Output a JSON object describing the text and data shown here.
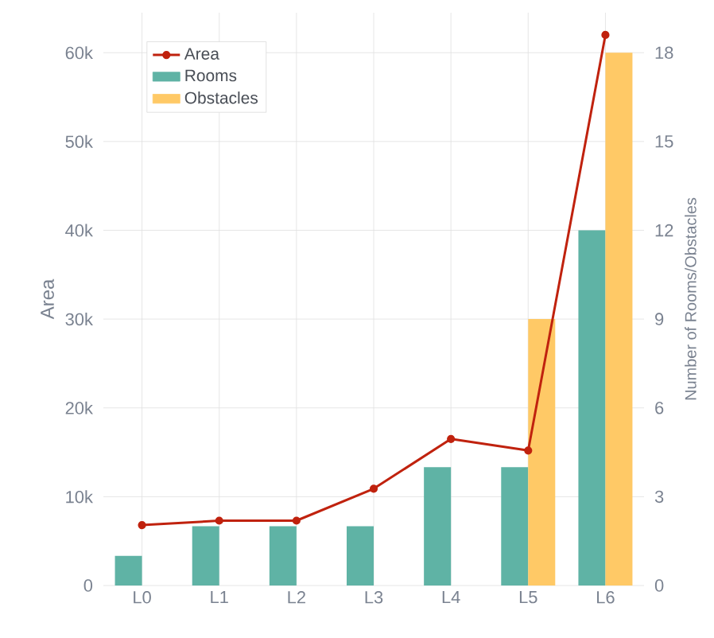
{
  "chart_data": {
    "type": "bar",
    "categories": [
      "L0",
      "L1",
      "L2",
      "L3",
      "L4",
      "L5",
      "L6"
    ],
    "series": [
      {
        "name": "Area",
        "type": "line",
        "color": "#c0220e",
        "values": [
          6800,
          7300,
          7300,
          10900,
          16500,
          15200,
          62000
        ]
      },
      {
        "name": "Rooms",
        "axis": "y2",
        "color": "#5fb3a5",
        "values": [
          1,
          2,
          2,
          2,
          4,
          4,
          12
        ]
      },
      {
        "name": "Obstacles",
        "axis": "y2",
        "color": "#ffc966",
        "values": [
          0,
          0,
          0,
          0,
          0,
          9,
          18
        ]
      }
    ],
    "ylabel": "Area",
    "y2label": "Number of Rooms/Obstacles",
    "ylim": [
      0,
      64500
    ],
    "yticks": [
      0,
      {
        "value": 10000,
        "label": "10k"
      },
      {
        "value": 20000,
        "label": "20k"
      },
      {
        "value": 30000,
        "label": "30k"
      },
      {
        "value": 40000,
        "label": "40k"
      },
      {
        "value": 50000,
        "label": "50k"
      },
      {
        "value": 60000,
        "label": "60k"
      }
    ],
    "y2lim": [
      0,
      19.35
    ],
    "y2ticks": [
      0,
      3,
      6,
      9,
      12,
      15,
      18
    ],
    "grid": true,
    "legend": "top left",
    "marker": "circle"
  }
}
